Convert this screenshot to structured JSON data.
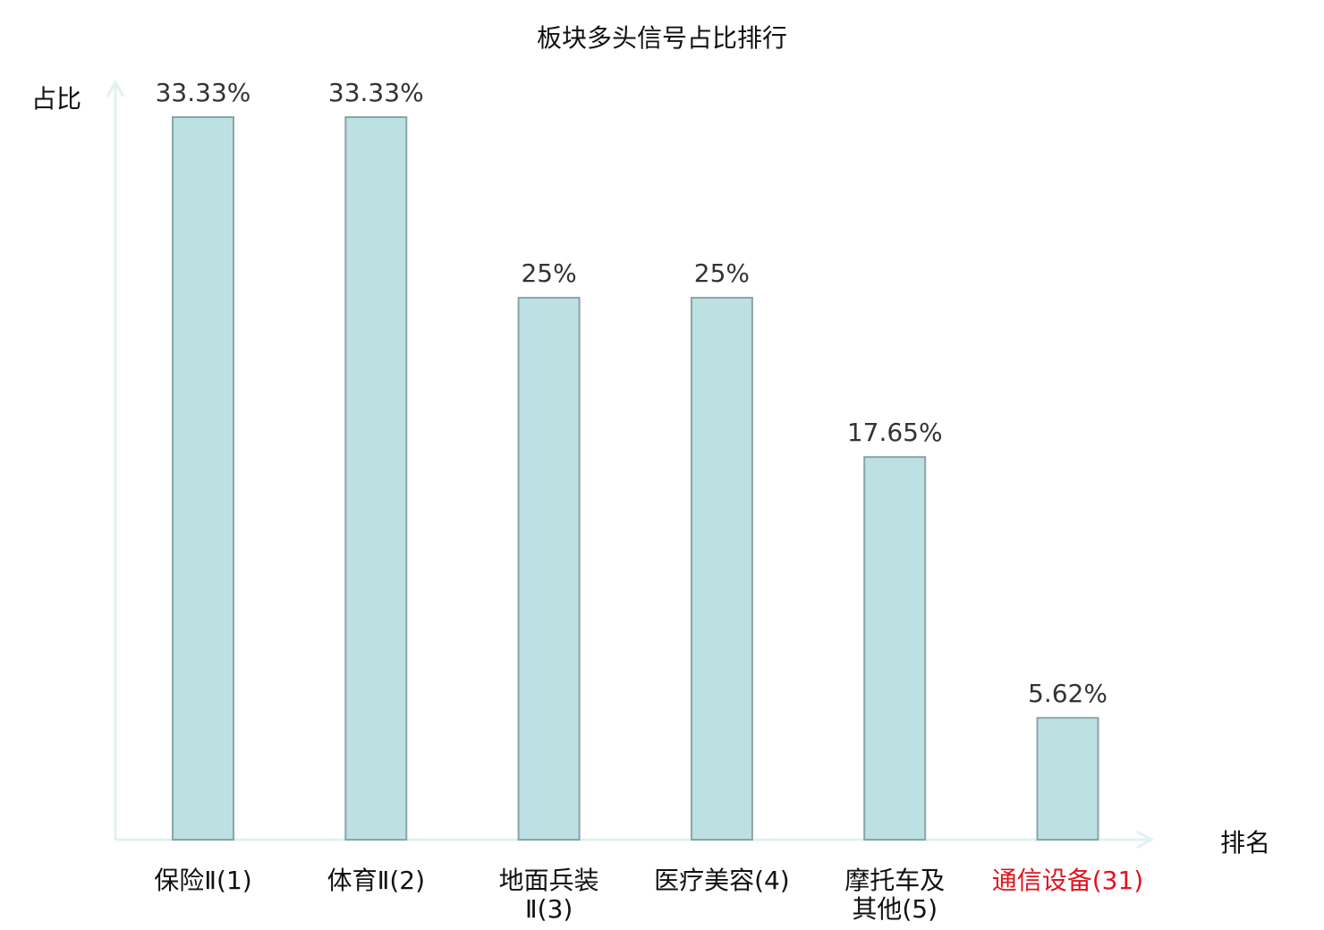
{
  "chart_data": {
    "type": "bar",
    "title": "板块多头信号占比排行",
    "ylabel": "占比",
    "xlabel": "排名",
    "categories": [
      [
        "保险Ⅱ(1)"
      ],
      [
        "体育Ⅱ(2)"
      ],
      [
        "地面兵装",
        "Ⅱ(3)"
      ],
      [
        "医疗美容(4)"
      ],
      [
        "摩托车及",
        "其他(5)"
      ],
      [
        "通信设备(31)"
      ]
    ],
    "values": [
      33.33,
      33.33,
      25,
      25,
      17.65,
      5.62
    ],
    "value_labels": [
      "33.33%",
      "33.33%",
      "25%",
      "25%",
      "17.65%",
      "5.62%"
    ],
    "highlight_index": 5,
    "ylim": [
      0,
      35
    ],
    "grid": false,
    "colors": {
      "bar_fill": "#bde0e2",
      "bar_stroke": "#89a5a8",
      "axis": "#e0f2ef",
      "label": "#111111",
      "value_label": "#333333",
      "highlight": "#e0141e"
    }
  }
}
